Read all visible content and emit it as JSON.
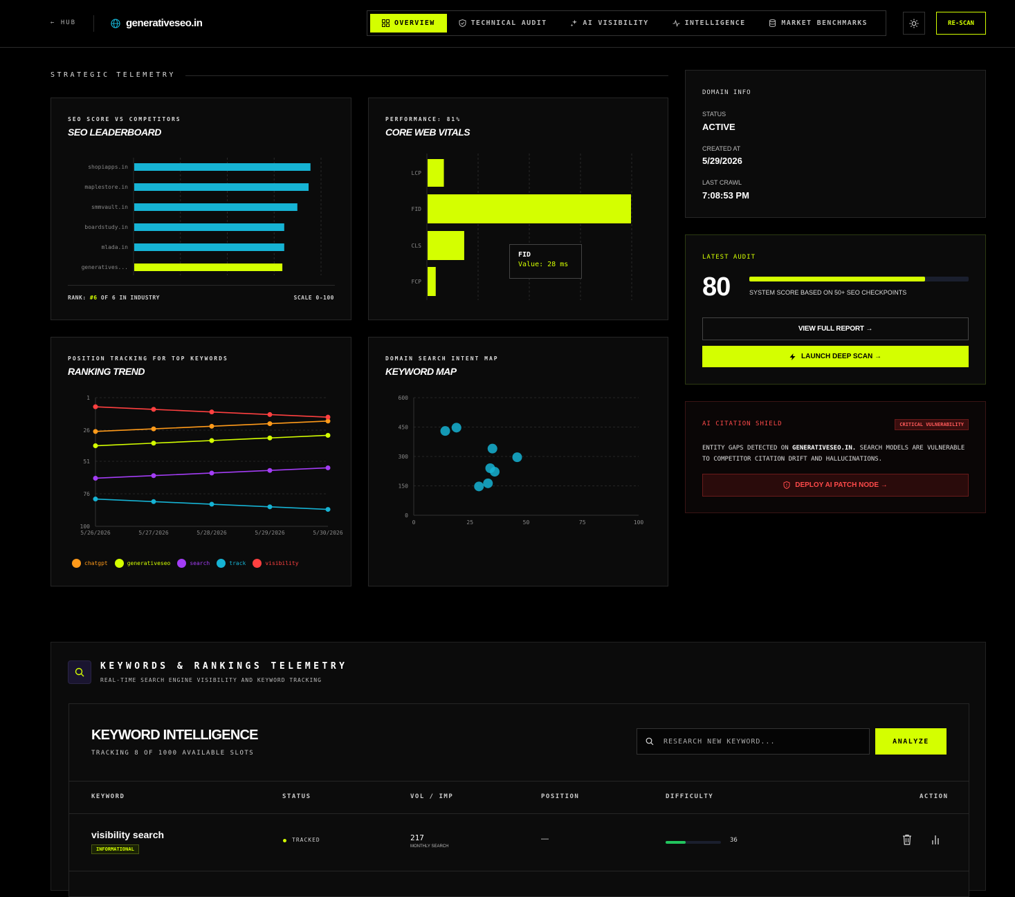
{
  "header": {
    "hub_label": "← HUB",
    "domain": "generativeseo.in",
    "nav": [
      {
        "label": "OVERVIEW",
        "icon": "grid-icon",
        "active": true
      },
      {
        "label": "TECHNICAL AUDIT",
        "icon": "shield-icon",
        "active": false
      },
      {
        "label": "AI VISIBILITY",
        "icon": "sparkle-icon",
        "active": false
      },
      {
        "label": "INTELLIGENCE",
        "icon": "pulse-icon",
        "active": false
      },
      {
        "label": "MARKET BENCHMARKS",
        "icon": "database-icon",
        "active": false
      }
    ],
    "theme_icon": "sun-icon",
    "rescan_label": "RE-SCAN"
  },
  "section_title": "STRATEGIC TELEMETRY",
  "leaderboard": {
    "tag": "SEO SCORE VS COMPETITORS",
    "title": "SEO LEADERBOARD",
    "rank_prefix": "RANK:",
    "rank_value": "#6",
    "rank_suffix": "OF 6 IN INDUSTRY",
    "scale": "SCALE 0-100"
  },
  "vitals": {
    "tag": "PERFORMANCE: 81%",
    "title": "CORE WEB VITALS",
    "tooltip_title": "FID",
    "tooltip_value": "Value: 28 ms"
  },
  "ranking": {
    "tag": "POSITION TRACKING FOR TOP KEYWORDS",
    "title": "RANKING TREND"
  },
  "keymap": {
    "tag": "DOMAIN SEARCH INTENT MAP",
    "title": "KEYWORD MAP"
  },
  "chart_data": [
    {
      "type": "bar",
      "orientation": "horizontal",
      "categories": [
        "shopiapps.in",
        "maplestore.in",
        "smmvault.in",
        "boardstudy.in",
        "mlada.in",
        "generatives..."
      ],
      "values": [
        94,
        93,
        87,
        80,
        80,
        79
      ],
      "xlim": [
        0,
        100
      ],
      "highlight": "generatives...",
      "colors": {
        "default": "#16b3d4",
        "highlight": "#d4ff00"
      }
    },
    {
      "type": "bar",
      "orientation": "horizontal",
      "categories": [
        "LCP",
        "FID",
        "CLS",
        "FCP"
      ],
      "values": [
        8,
        100,
        18,
        4
      ],
      "color": "#d4ff00"
    },
    {
      "type": "line",
      "x": [
        "5/26/2026",
        "5/27/2026",
        "5/28/2026",
        "5/29/2026",
        "5/30/2026"
      ],
      "yticks": [
        "1",
        "26",
        "51",
        "76",
        "100"
      ],
      "ylim": [
        1,
        100
      ],
      "inverted_y": true,
      "series": [
        {
          "name": "chatgpt",
          "color": "#ff9a1a",
          "values": [
            27,
            25,
            23,
            21,
            19
          ]
        },
        {
          "name": "generativeseo",
          "color": "#d4ff00",
          "values": [
            38,
            36,
            34,
            32,
            30
          ]
        },
        {
          "name": "search",
          "color": "#a33df5",
          "values": [
            63,
            61,
            59,
            57,
            55
          ]
        },
        {
          "name": "track",
          "color": "#16b3d4",
          "values": [
            79,
            81,
            83,
            85,
            87
          ]
        },
        {
          "name": "visibility",
          "color": "#ff4040",
          "values": [
            8,
            10,
            12,
            14,
            16
          ]
        }
      ]
    },
    {
      "type": "scatter",
      "xticks": [
        "0",
        "25",
        "50",
        "75",
        "100"
      ],
      "yticks": [
        "0",
        "150",
        "300",
        "450",
        "600"
      ],
      "xlim": [
        0,
        100
      ],
      "ylim": [
        0,
        600
      ],
      "points": [
        [
          14,
          430
        ],
        [
          19,
          447
        ],
        [
          35,
          340
        ],
        [
          46,
          296
        ],
        [
          34,
          240
        ],
        [
          36,
          222
        ],
        [
          33,
          163
        ],
        [
          29,
          147
        ]
      ],
      "color": "#16b3d4"
    }
  ],
  "domain_info": {
    "heading": "DOMAIN INFO",
    "status_label": "STATUS",
    "status_value": "ACTIVE",
    "created_label": "CREATED AT",
    "created_value": "5/29/2026",
    "crawl_label": "LAST CRAWL",
    "crawl_value": "7:08:53 PM"
  },
  "audit": {
    "heading": "LATEST AUDIT",
    "score": "80",
    "score_fraction": 0.8,
    "description": "SYSTEM SCORE BASED ON 50+ SEO CHECKPOINTS",
    "view_report": "VIEW FULL REPORT →",
    "deep_scan": "LAUNCH DEEP SCAN →"
  },
  "shield": {
    "heading": "AI CITATION SHIELD",
    "badge": "CRITICAL VULNERABILITY",
    "text_prefix": "ENTITY GAPS DETECTED ON",
    "text_domain": "GENERATIVESEO.IN.",
    "text_suffix": "SEARCH MODELS ARE VULNERABLE TO COMPETITOR CITATION DRIFT AND HALLUCINATIONS.",
    "button": "DEPLOY AI PATCH NODE →"
  },
  "keywords_section": {
    "title": "KEYWORDS & RANKINGS TELEMETRY",
    "subtitle": "REAL-TIME SEARCH ENGINE VISIBILITY AND KEYWORD TRACKING"
  },
  "intel": {
    "title": "KEYWORD INTELLIGENCE",
    "subtitle": "TRACKING 8 OF 1000 AVAILABLE SLOTS",
    "search_placeholder": "RESEARCH NEW KEYWORD...",
    "analyze": "ANALYZE",
    "columns": [
      "KEYWORD",
      "STATUS",
      "VOL / IMP",
      "POSITION",
      "DIFFICULTY",
      "ACTION"
    ],
    "rows": [
      {
        "keyword": "visibility search",
        "intent": "INFORMATIONAL",
        "status": "TRACKED",
        "volume": "217",
        "volume_label": "MONTHLY SEARCH",
        "position": "—",
        "difficulty": "36",
        "difficulty_fraction": 0.36
      }
    ]
  }
}
